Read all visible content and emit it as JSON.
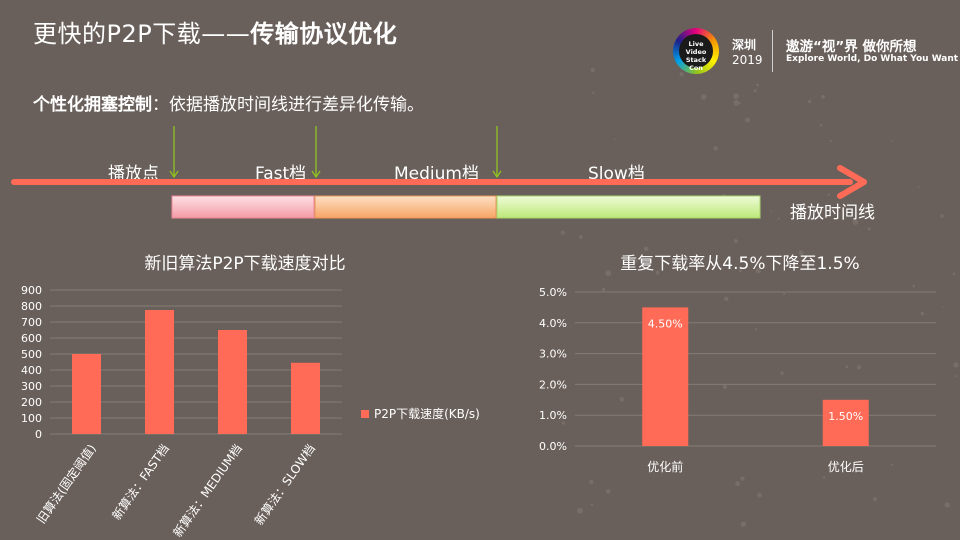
{
  "header": {
    "title_main": "更快的P2P下载——",
    "title_bold": "传输协议优化",
    "logo_text": "Live Video Stack Con",
    "logo_city": "深圳",
    "logo_year": "2019",
    "slogan": "遨游“视”界  做你所想",
    "slogan_en": "Explore World, Do What You Want"
  },
  "subtitle": {
    "bold": "个性化拥塞控制",
    "rest": "：依据播放时间线进行差异化传输。"
  },
  "timeline": {
    "labels": [
      "播放点",
      "Fast档",
      "Medium档",
      "Slow档"
    ],
    "axis_label": "播放时间线",
    "segment_colors": [
      "#f9b4bc",
      "#fcbf8b",
      "#d6f5a0"
    ],
    "arrow_color": "#ff6b57",
    "marker_color": "#8fc31f"
  },
  "chart_data": [
    {
      "type": "bar",
      "title": "新旧算法P2P下载速度对比",
      "categories": [
        "旧算法(固定阈值)",
        "新算法：FAST档",
        "新算法：MEDIUM档",
        "新算法：SLOW档"
      ],
      "series": [
        {
          "name": "P2P下载速度(KB/s)",
          "values": [
            500,
            775,
            650,
            445
          ],
          "color": "#ff6b57"
        }
      ],
      "ylim": [
        0,
        900
      ],
      "yticks": [
        0,
        100,
        200,
        300,
        400,
        500,
        600,
        700,
        800,
        900
      ],
      "legend": "right",
      "grid": true
    },
    {
      "type": "bar",
      "title": "重复下载率从4.5%下降至1.5%",
      "categories": [
        "优化前",
        "优化后"
      ],
      "series": [
        {
          "values": [
            4.5,
            1.5
          ],
          "data_labels": [
            "4.50%",
            "1.50%"
          ],
          "color": "#ff6b57"
        }
      ],
      "ylim": [
        0,
        5
      ],
      "yticks": [
        "0.0%",
        "1.0%",
        "2.0%",
        "3.0%",
        "4.0%",
        "5.0%"
      ],
      "grid": true
    }
  ]
}
